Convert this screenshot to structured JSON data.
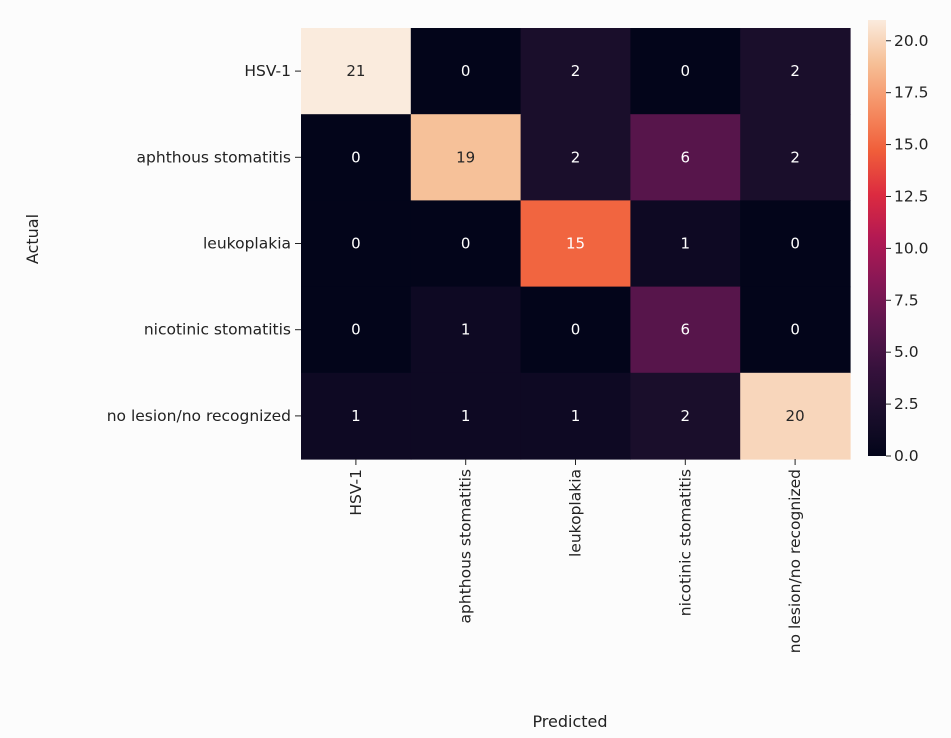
{
  "chart_data": {
    "type": "heatmap",
    "title": "",
    "xlabel": "Predicted",
    "ylabel": "Actual",
    "x_categories": [
      "HSV-1",
      "aphthous stomatitis",
      "leukoplakia",
      "nicotinic stomatitis",
      "no lesion/no recognized"
    ],
    "y_categories": [
      "HSV-1",
      "aphthous stomatitis",
      "leukoplakia",
      "nicotinic stomatitis",
      "no lesion/no recognized"
    ],
    "values": [
      [
        21,
        0,
        2,
        0,
        2
      ],
      [
        0,
        19,
        2,
        6,
        2
      ],
      [
        0,
        0,
        15,
        1,
        0
      ],
      [
        0,
        1,
        0,
        6,
        0
      ],
      [
        1,
        1,
        1,
        2,
        20
      ]
    ],
    "colormap": "rocket",
    "colorbar": {
      "range": [
        0,
        21
      ],
      "ticks": [
        0,
        2.5,
        5,
        7.5,
        10,
        12.5,
        15,
        17.5,
        20
      ],
      "tick_labels": [
        "0.0",
        "2.5",
        "5.0",
        "7.5",
        "10.0",
        "12.5",
        "15.0",
        "17.5",
        "20.0"
      ]
    },
    "annotated": true,
    "grid": false
  }
}
